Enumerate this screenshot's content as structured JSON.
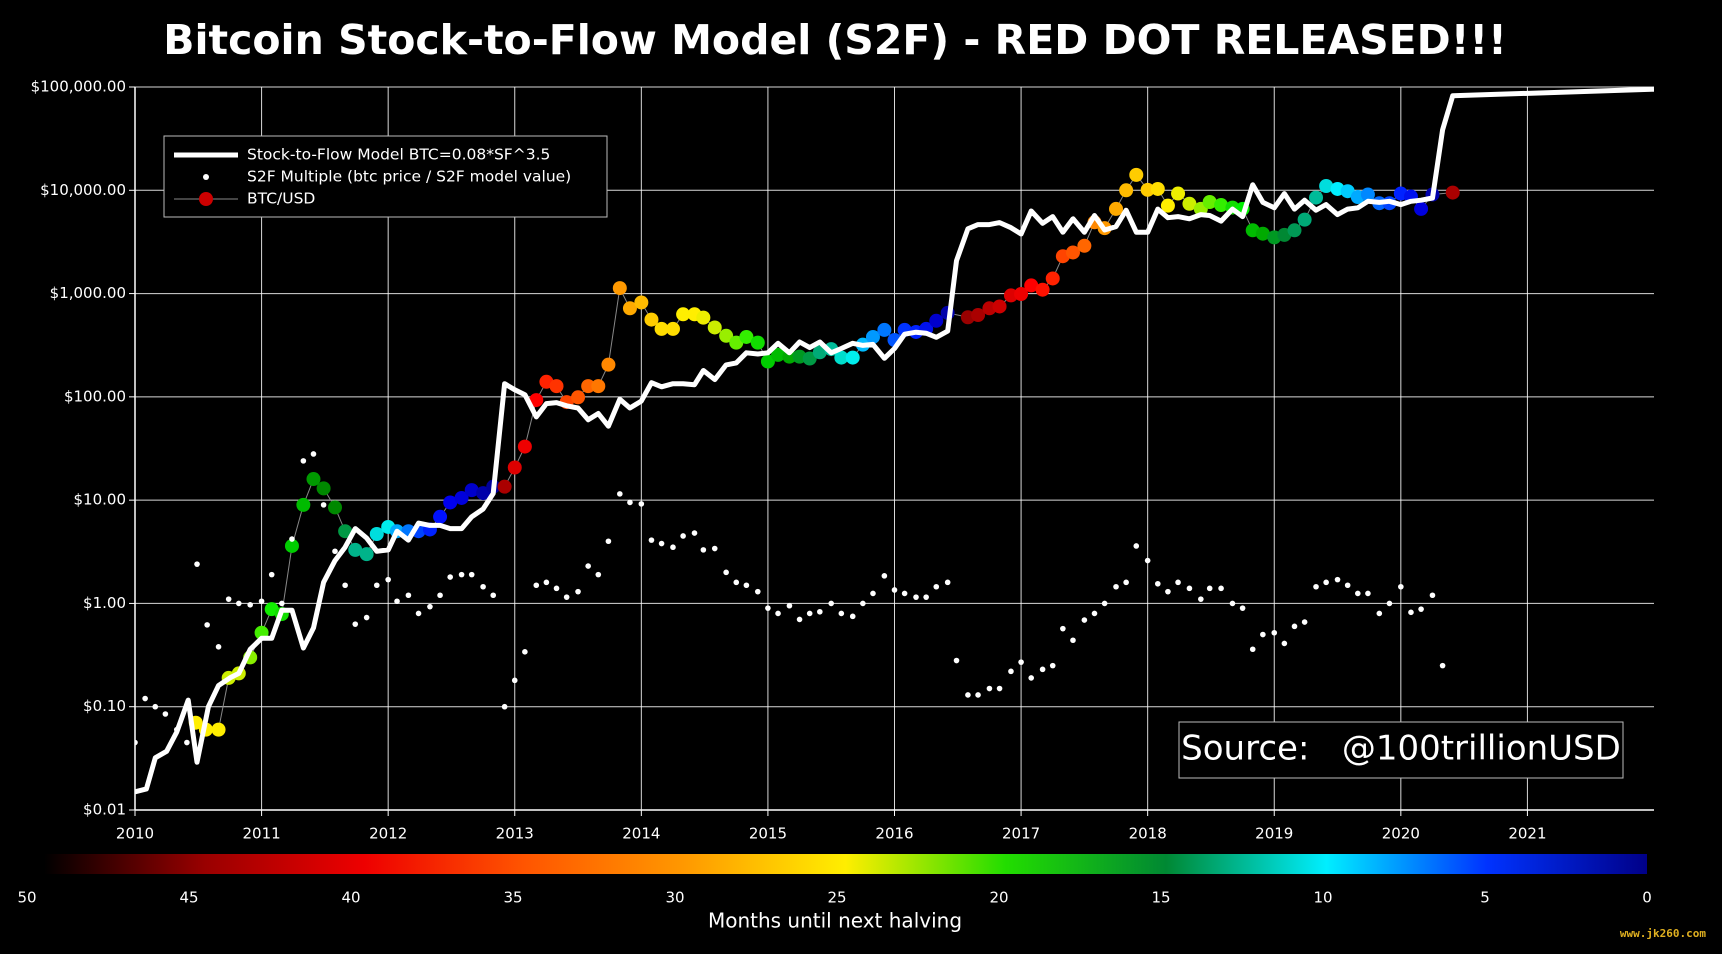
{
  "chart_data": {
    "type": "line",
    "title": "Bitcoin Stock-to-Flow Model (S2F) - RED DOT RELEASED!!!",
    "xlim": [
      2010,
      2022
    ],
    "xticks": [
      2010,
      2011,
      2012,
      2013,
      2014,
      2015,
      2016,
      2017,
      2018,
      2019,
      2020,
      2021
    ],
    "yscale": "log",
    "ylim": [
      0.01,
      100000
    ],
    "yticks": [
      {
        "value": 0.01,
        "label": "$0.01"
      },
      {
        "value": 0.1,
        "label": "$0.10"
      },
      {
        "value": 1,
        "label": "$1.00"
      },
      {
        "value": 10,
        "label": "$10.00"
      },
      {
        "value": 100,
        "label": "$100.00"
      },
      {
        "value": 1000,
        "label": "$1,000.00"
      },
      {
        "value": 10000,
        "label": "$10,000.00"
      },
      {
        "value": 100000,
        "label": "$100,000.00"
      }
    ],
    "grid": true,
    "legend": "upper left",
    "series": [
      {
        "name": "Stock-to-Flow Model BTC=0.08*SF^3.5",
        "mode": "line",
        "color": "#ffffff",
        "x": [
          2010.0,
          2010.09,
          2010.16,
          2010.25,
          2010.33,
          2010.42,
          2010.49,
          2010.58,
          2010.66,
          2010.75,
          2010.82,
          2010.91,
          2011.0,
          2011.08,
          2011.16,
          2011.24,
          2011.33,
          2011.41,
          2011.49,
          2011.58,
          2011.66,
          2011.74,
          2011.83,
          2011.91,
          2012.0,
          2012.07,
          2012.16,
          2012.24,
          2012.33,
          2012.41,
          2012.49,
          2012.58,
          2012.66,
          2012.75,
          2012.83,
          2012.92,
          2013.0,
          2013.08,
          2013.17,
          2013.25,
          2013.33,
          2013.41,
          2013.5,
          2013.58,
          2013.66,
          2013.74,
          2013.83,
          2013.91,
          2014.0,
          2014.08,
          2014.16,
          2014.25,
          2014.33,
          2014.42,
          2014.49,
          2014.58,
          2014.67,
          2014.75,
          2014.83,
          2014.92,
          2015.0,
          2015.08,
          2015.17,
          2015.25,
          2015.33,
          2015.41,
          2015.5,
          2015.58,
          2015.67,
          2015.75,
          2015.83,
          2015.92,
          2016.0,
          2016.08,
          2016.17,
          2016.25,
          2016.33,
          2016.42,
          2016.49,
          2016.58,
          2016.66,
          2016.75,
          2016.83,
          2016.92,
          2017.0,
          2017.08,
          2017.17,
          2017.25,
          2017.33,
          2017.41,
          2017.5,
          2017.58,
          2017.66,
          2017.75,
          2017.83,
          2017.91,
          2018.0,
          2018.08,
          2018.16,
          2018.24,
          2018.33,
          2018.42,
          2018.49,
          2018.58,
          2018.67,
          2018.75,
          2018.83,
          2018.91,
          2019.0,
          2019.08,
          2019.16,
          2019.24,
          2019.33,
          2019.41,
          2019.5,
          2019.58,
          2019.66,
          2019.74,
          2019.83,
          2019.91,
          2020.0,
          2020.08,
          2020.16,
          2020.25,
          2020.33,
          2020.41,
          2022.0
        ],
        "values": [
          0.015,
          0.016,
          0.032,
          0.037,
          0.057,
          0.116,
          0.029,
          0.1,
          0.16,
          0.19,
          0.21,
          0.36,
          0.46,
          0.46,
          0.86,
          0.86,
          0.37,
          0.58,
          1.6,
          2.6,
          3.5,
          5.3,
          4.3,
          3.2,
          3.3,
          5.0,
          4.1,
          6.0,
          5.7,
          5.7,
          5.3,
          5.3,
          6.9,
          8.2,
          11.6,
          134,
          117,
          105,
          64,
          86,
          88,
          82,
          78,
          60,
          69,
          52,
          95,
          78,
          91,
          137,
          125,
          134,
          134,
          131,
          180,
          147,
          204,
          213,
          267,
          260,
          267,
          330,
          267,
          340,
          300,
          340,
          267,
          294,
          330,
          315,
          322,
          236,
          294,
          404,
          423,
          413,
          377,
          433,
          2080,
          4240,
          4650,
          4650,
          4870,
          4340,
          3770,
          6300,
          4790,
          5560,
          3930,
          5300,
          3930,
          5700,
          4130,
          4450,
          6420,
          3930,
          3930,
          6570,
          5430,
          5560,
          5300,
          5820,
          5700,
          5030,
          6570,
          5560,
          11300,
          7640,
          6760,
          9290,
          6570,
          8020,
          6420,
          7270,
          5820,
          6570,
          6760,
          7830,
          7640,
          7830,
          7270,
          7830,
          8020,
          8420,
          38500,
          82200,
          95300
        ]
      },
      {
        "name": "S2F Multiple (btc price / S2F model value)",
        "mode": "markers",
        "color": "#ffffff",
        "x": [
          2010.0,
          2010.08,
          2010.16,
          2010.24,
          2010.33,
          2010.41,
          2010.49,
          2010.57,
          2010.66,
          2010.74,
          2010.82,
          2010.91,
          2011.0,
          2011.08,
          2011.16,
          2011.24,
          2011.33,
          2011.41,
          2011.49,
          2011.58,
          2011.66,
          2011.74,
          2011.83,
          2011.91,
          2012.0,
          2012.07,
          2012.16,
          2012.24,
          2012.33,
          2012.41,
          2012.49,
          2012.58,
          2012.66,
          2012.75,
          2012.83,
          2012.92,
          2013.0,
          2013.08,
          2013.17,
          2013.25,
          2013.33,
          2013.41,
          2013.5,
          2013.58,
          2013.66,
          2013.74,
          2013.83,
          2013.91,
          2014.0,
          2014.08,
          2014.16,
          2014.25,
          2014.33,
          2014.42,
          2014.49,
          2014.58,
          2014.67,
          2014.75,
          2014.83,
          2014.92,
          2015.0,
          2015.08,
          2015.17,
          2015.25,
          2015.33,
          2015.41,
          2015.5,
          2015.58,
          2015.67,
          2015.75,
          2015.83,
          2015.92,
          2016.0,
          2016.08,
          2016.17,
          2016.25,
          2016.33,
          2016.42,
          2016.49,
          2016.58,
          2016.66,
          2016.75,
          2016.83,
          2016.92,
          2017.0,
          2017.08,
          2017.17,
          2017.25,
          2017.33,
          2017.41,
          2017.5,
          2017.58,
          2017.66,
          2017.75,
          2017.83,
          2017.91,
          2018.0,
          2018.08,
          2018.16,
          2018.24,
          2018.33,
          2018.42,
          2018.49,
          2018.58,
          2018.67,
          2018.75,
          2018.83,
          2018.91,
          2019.0,
          2019.08,
          2019.16,
          2019.24,
          2019.33,
          2019.41,
          2019.5,
          2019.58,
          2019.66,
          2019.74,
          2019.83,
          2019.91,
          2020.0,
          2020.08,
          2020.16,
          2020.25,
          2020.33
        ],
        "values": [
          0.045,
          0.12,
          0.1,
          0.085,
          0.06,
          0.045,
          2.4,
          0.62,
          0.38,
          1.1,
          1.0,
          0.97,
          1.05,
          1.9,
          1,
          4.2,
          24,
          28,
          9,
          3.2,
          1.5,
          0.63,
          0.73,
          1.5,
          1.7,
          1.05,
          1.2,
          0.8,
          0.93,
          1.2,
          1.8,
          1.9,
          1.9,
          1.45,
          1.2,
          0.1,
          0.18,
          0.34,
          1.5,
          1.6,
          1.4,
          1.15,
          1.3,
          2.3,
          1.9,
          4,
          11.5,
          9.5,
          9.2,
          4.1,
          3.8,
          3.5,
          4.5,
          4.8,
          3.3,
          3.4,
          2,
          1.6,
          1.5,
          1.3,
          0.9,
          0.8,
          0.95,
          0.7,
          0.8,
          0.83,
          1,
          0.8,
          0.75,
          1,
          1.25,
          1.85,
          1.35,
          1.25,
          1.15,
          1.15,
          1.45,
          1.6,
          0.28,
          0.13,
          0.13,
          0.15,
          0.15,
          0.22,
          0.27,
          0.19,
          0.23,
          0.25,
          0.57,
          0.44,
          0.69,
          0.8,
          1,
          1.45,
          1.6,
          3.6,
          2.6,
          1.55,
          1.3,
          1.6,
          1.4,
          1.1,
          1.4,
          1.4,
          1,
          0.9,
          0.36,
          0.5,
          0.52,
          0.41,
          0.6,
          0.66,
          1.45,
          1.6,
          1.7,
          1.5,
          1.25,
          1.25,
          0.8,
          1,
          1.45,
          0.82,
          0.88,
          1.2,
          0.25
        ]
      },
      {
        "name": "BTC/USD",
        "mode": "lines+markers",
        "color": "#888888",
        "marker_color": "#cc0000",
        "x": [
          2010.48,
          2010.56,
          2010.66,
          2010.74,
          2010.82,
          2010.91,
          2011.0,
          2011.08,
          2011.16,
          2011.24,
          2011.33,
          2011.41,
          2011.49,
          2011.58,
          2011.66,
          2011.74,
          2011.83,
          2011.91,
          2012.0,
          2012.07,
          2012.16,
          2012.24,
          2012.33,
          2012.41,
          2012.49,
          2012.58,
          2012.66,
          2012.75,
          2012.83,
          2012.92,
          2013.0,
          2013.08,
          2013.17,
          2013.25,
          2013.33,
          2013.41,
          2013.5,
          2013.58,
          2013.66,
          2013.74,
          2013.83,
          2013.91,
          2014.0,
          2014.08,
          2014.16,
          2014.25,
          2014.33,
          2014.42,
          2014.49,
          2014.58,
          2014.67,
          2014.75,
          2014.83,
          2014.92,
          2015.0,
          2015.08,
          2015.17,
          2015.25,
          2015.33,
          2015.41,
          2015.5,
          2015.58,
          2015.67,
          2015.75,
          2015.83,
          2015.92,
          2016.0,
          2016.08,
          2016.17,
          2016.25,
          2016.33,
          2016.42,
          2016.58,
          2016.66,
          2016.75,
          2016.83,
          2016.92,
          2017.0,
          2017.08,
          2017.17,
          2017.25,
          2017.33,
          2017.41,
          2017.5,
          2017.58,
          2017.66,
          2017.75,
          2017.83,
          2017.91,
          2018.0,
          2018.08,
          2018.16,
          2018.24,
          2018.33,
          2018.42,
          2018.49,
          2018.58,
          2018.67,
          2018.75,
          2018.83,
          2018.91,
          2019.0,
          2019.08,
          2019.16,
          2019.24,
          2019.33,
          2019.41,
          2019.5,
          2019.58,
          2019.66,
          2019.74,
          2019.83,
          2019.91,
          2020.0,
          2020.08,
          2020.16,
          2020.25,
          2020.41
        ],
        "values": [
          0.07,
          0.06,
          0.06,
          0.19,
          0.21,
          0.3,
          0.52,
          0.88,
          0.79,
          3.6,
          9,
          16,
          13,
          8.5,
          5,
          3.3,
          3,
          4.7,
          5.5,
          5,
          5,
          5,
          5.2,
          6.9,
          9.5,
          10.5,
          12.5,
          11.7,
          13.5,
          13.5,
          20.7,
          33,
          93,
          140,
          127,
          89,
          99,
          127,
          127,
          205,
          1130,
          720,
          820,
          560,
          455,
          455,
          630,
          630,
          585,
          470,
          390,
          335,
          380,
          335,
          220,
          255,
          245,
          245,
          235,
          270,
          290,
          240,
          240,
          320,
          380,
          445,
          355,
          445,
          425,
          455,
          545,
          650,
          590,
          620,
          720,
          750,
          960,
          990,
          1200,
          1090,
          1400,
          2300,
          2500,
          2900,
          4900,
          4300,
          6600,
          10000,
          14100,
          10100,
          10300,
          7100,
          9300,
          7400,
          6600,
          7700,
          7200,
          6800,
          6600,
          4100,
          3800,
          3500,
          3700,
          4100,
          5200,
          8500,
          11000,
          10300,
          9800,
          8600,
          9100,
          7500,
          7500,
          9300,
          8700,
          6600,
          9100,
          9500
        ],
        "colors": [
          "#ffee00",
          "#ffee00",
          "#ffee00",
          "#ccee00",
          "#ccee00",
          "#88ee00",
          "#44ee00",
          "#11ee00",
          "#11dd00",
          "#00cc00",
          "#00bb00",
          "#009900",
          "#008800",
          "#008800",
          "#009944",
          "#00b38a",
          "#00b38a",
          "#00dddd",
          "#00eeee",
          "#00aaff",
          "#0077ff",
          "#0044ff",
          "#0022ff",
          "#0011ff",
          "#0000ee",
          "#0000dd",
          "#0000cc",
          "#0000aa",
          "#000099",
          "#aa0000",
          "#dd0000",
          "#ee0000",
          "#ff0000",
          "#ff2200",
          "#ff3300",
          "#ff4400",
          "#ff5500",
          "#ff6600",
          "#ff7700",
          "#ff8800",
          "#ff9900",
          "#ffaa00",
          "#ffbb00",
          "#ffcc00",
          "#ffdd00",
          "#ffdd00",
          "#ffee00",
          "#ffee00",
          "#eeee00",
          "#ccee00",
          "#99ee00",
          "#66ee00",
          "#33ee00",
          "#11dd00",
          "#00cc00",
          "#00bb00",
          "#00aa00",
          "#009922",
          "#009944",
          "#00aa77",
          "#00bb99",
          "#00ddcc",
          "#00eeee",
          "#00bbff",
          "#0099ff",
          "#0077ff",
          "#0055ff",
          "#0033ff",
          "#0022ff",
          "#0011ee",
          "#0000cc",
          "#0000aa",
          "#990000",
          "#aa0000",
          "#bb0000",
          "#cc0000",
          "#dd0000",
          "#ee0000",
          "#ff0000",
          "#ff1100",
          "#ff2200",
          "#ff4400",
          "#ff5500",
          "#ff6600",
          "#ff8800",
          "#ff9900",
          "#ffaa00",
          "#ffbb00",
          "#ffcc00",
          "#ffcc00",
          "#ffdd00",
          "#ffee00",
          "#eeee00",
          "#ccee00",
          "#99ee00",
          "#66ee00",
          "#33ee00",
          "#11dd00",
          "#00ee00",
          "#00bb00",
          "#00aa00",
          "#009922",
          "#008833",
          "#009955",
          "#00aa77",
          "#00bb99",
          "#00dddd",
          "#00eeff",
          "#00ccff",
          "#00aaff",
          "#0088ff",
          "#0066ff",
          "#0044ff",
          "#0022ff",
          "#0011ee",
          "#0000dd",
          "#0000aa",
          "#aa0000"
        ]
      }
    ],
    "colorbar": {
      "label": "Months until next halving",
      "ticks": [
        50,
        45,
        40,
        35,
        30,
        25,
        20,
        15,
        10,
        5,
        0
      ],
      "colors": [
        "#000000",
        "#990000",
        "#ee0000",
        "#ff5500",
        "#ff9900",
        "#ffee00",
        "#22dd00",
        "#008833",
        "#00eeff",
        "#0033ff",
        "#000088"
      ]
    },
    "annotations": [
      "Source:   @100trillionUSD",
      "www.jk260.com"
    ]
  }
}
